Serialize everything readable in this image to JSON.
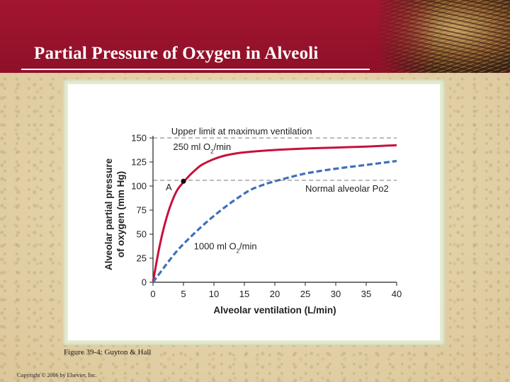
{
  "slide": {
    "title": "Partial Pressure of Oxygen in Alveoli",
    "caption": "Figure 39-4: Guyton & Hall",
    "copyright": "Copyright © 2006 by Elsevier, Inc."
  },
  "colors": {
    "header": "#9b1430",
    "series_solid": "#c8103a",
    "series_dashed": "#3f6fb8",
    "reference_line": "#777777"
  },
  "chart_data": {
    "type": "line",
    "xlabel": "Alveolar ventilation (L/min)",
    "ylabel_line1": "Alveolar partial pressure",
    "ylabel_line2": "of oxygen (mm Hg)",
    "xlim": [
      0,
      40
    ],
    "ylim": [
      0,
      150
    ],
    "xticks": [
      0,
      5,
      10,
      15,
      20,
      25,
      30,
      35,
      40
    ],
    "yticks": [
      0,
      25,
      50,
      75,
      100,
      125,
      150
    ],
    "grid": false,
    "series": [
      {
        "label": "250 ml O2/min",
        "style": "solid",
        "x": [
          0,
          1,
          2,
          3,
          4,
          5,
          6,
          7,
          8,
          10,
          12,
          15,
          20,
          25,
          30,
          35,
          40
        ],
        "y": [
          0,
          35,
          62,
          82,
          96,
          104,
          111,
          117,
          122,
          128,
          132,
          135,
          137.5,
          139,
          140,
          141,
          142.5
        ]
      },
      {
        "label": "1000 ml O2/min",
        "style": "dashed",
        "x": [
          0,
          2,
          4,
          6,
          8,
          10,
          12,
          14,
          16,
          18,
          20,
          25,
          30,
          35,
          40
        ],
        "y": [
          0,
          17,
          33,
          46,
          58,
          69,
          79,
          88,
          96,
          101,
          105,
          113,
          118,
          122,
          126
        ]
      }
    ],
    "reference_lines": [
      {
        "y": 150,
        "label": "Upper limit at maximum ventilation"
      },
      {
        "y": 106,
        "label": "Normal alveolar Po2"
      }
    ],
    "point": {
      "label": "A",
      "x": 5,
      "y": 105
    },
    "annotations": {
      "solid_label": "250 ml O2/min",
      "dashed_label": "1000 ml O2/min"
    }
  }
}
